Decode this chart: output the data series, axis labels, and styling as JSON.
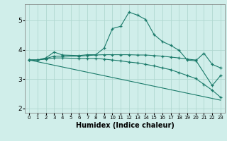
{
  "xlabel": "Humidex (Indice chaleur)",
  "background_color": "#d0eeea",
  "grid_color": "#b0d8d0",
  "line_color": "#1a7a6a",
  "xlim": [
    -0.5,
    23.5
  ],
  "ylim": [
    1.85,
    5.55
  ],
  "yticks": [
    2,
    3,
    4,
    5
  ],
  "xticks": [
    0,
    1,
    2,
    3,
    4,
    5,
    6,
    7,
    8,
    9,
    10,
    11,
    12,
    13,
    14,
    15,
    16,
    17,
    18,
    19,
    20,
    21,
    22,
    23
  ],
  "line1_x": [
    0,
    1,
    2,
    3,
    4,
    6,
    7,
    8,
    9,
    10,
    11,
    12,
    13,
    14,
    15,
    16,
    17,
    18,
    19,
    20,
    21,
    22,
    23
  ],
  "line1_y": [
    3.65,
    3.65,
    3.72,
    3.92,
    3.82,
    3.8,
    3.83,
    3.83,
    4.05,
    4.72,
    4.8,
    5.28,
    5.18,
    5.03,
    4.52,
    4.28,
    4.15,
    3.98,
    3.65,
    3.62,
    3.88,
    3.5,
    3.38
  ],
  "line2_x": [
    0,
    1,
    2,
    3,
    4,
    6,
    7,
    8,
    9,
    10,
    11,
    12,
    13,
    14,
    15,
    16,
    17,
    18,
    19,
    20,
    22,
    23
  ],
  "line2_y": [
    3.65,
    3.65,
    3.7,
    3.78,
    3.78,
    3.78,
    3.8,
    3.82,
    3.83,
    3.83,
    3.83,
    3.83,
    3.82,
    3.82,
    3.8,
    3.78,
    3.75,
    3.72,
    3.68,
    3.65,
    2.78,
    3.12
  ],
  "line3_x": [
    0,
    1,
    2,
    3,
    4,
    6,
    7,
    8,
    9,
    10,
    11,
    12,
    13,
    14,
    15,
    16,
    17,
    18,
    19,
    20,
    21,
    22,
    23
  ],
  "line3_y": [
    3.65,
    3.65,
    3.68,
    3.72,
    3.72,
    3.7,
    3.7,
    3.7,
    3.68,
    3.65,
    3.62,
    3.58,
    3.55,
    3.5,
    3.45,
    3.38,
    3.32,
    3.22,
    3.12,
    3.02,
    2.82,
    2.62,
    2.38
  ],
  "line4_x": [
    0,
    23
  ],
  "line4_y": [
    3.65,
    2.28
  ]
}
